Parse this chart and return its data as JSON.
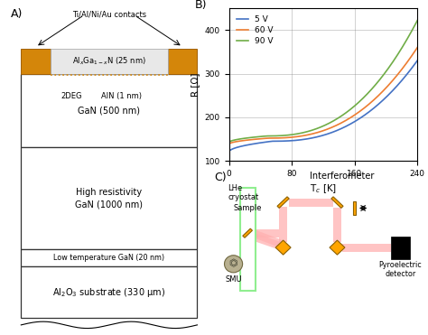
{
  "panel_B": {
    "xlim": [
      0,
      240
    ],
    "ylim": [
      100,
      450
    ],
    "xticks": [
      0,
      80,
      160,
      240
    ],
    "yticks": [
      100,
      200,
      300,
      400
    ],
    "colors": [
      "#4472c4",
      "#ed7d31",
      "#70ad47"
    ]
  },
  "fig_bg": "white"
}
